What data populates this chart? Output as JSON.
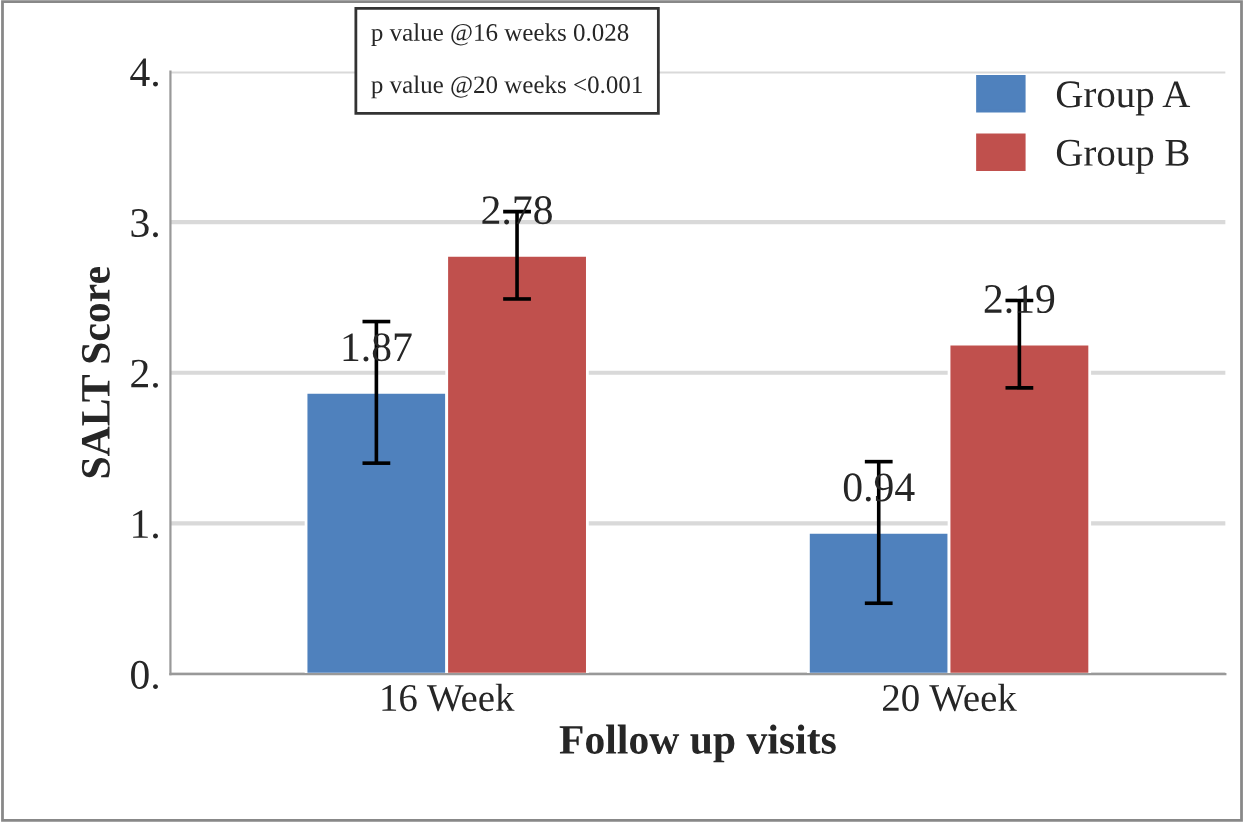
{
  "chart_data": {
    "type": "bar",
    "xlabel": "Follow up visits",
    "ylabel": "SALT Score",
    "categories": [
      "16 Week",
      "20 Week"
    ],
    "series": [
      {
        "name": "Group A",
        "color": "#4f81bd",
        "values": [
          1.87,
          0.94
        ],
        "errors": [
          0.47,
          0.47
        ]
      },
      {
        "name": "Group B",
        "color": "#c0504d",
        "values": [
          2.78,
          2.19
        ],
        "errors": [
          0.29,
          0.29
        ]
      }
    ],
    "ylim": [
      0,
      4
    ],
    "yticks": [
      {
        "value": 0,
        "label": "0."
      },
      {
        "value": 1,
        "label": "1."
      },
      {
        "value": 2,
        "label": "2."
      },
      {
        "value": 3,
        "label": "3."
      },
      {
        "value": 4,
        "label": "4."
      }
    ],
    "grid": "y",
    "legend": "top right",
    "data_labels": true,
    "annotations": [
      "p value @16 weeks 0.028",
      "p value @20 weeks <0.001"
    ]
  }
}
